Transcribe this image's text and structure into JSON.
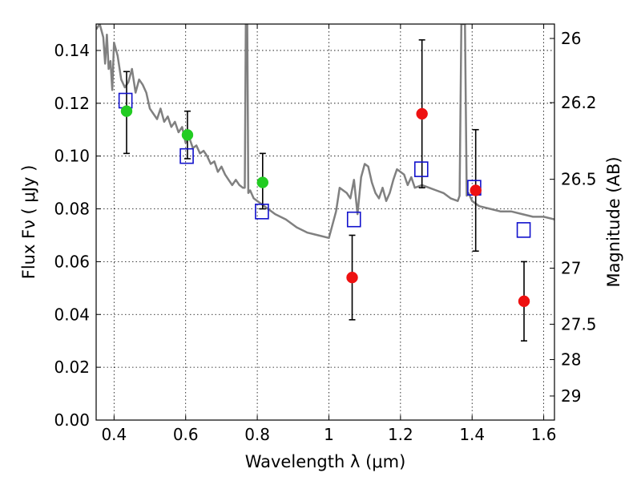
{
  "chart_data": {
    "type": "scatter",
    "title": "",
    "xlabel": "Wavelength  λ (μm)",
    "ylabel": "Flux  Fν  ( μJy )",
    "ylabel_right": "Magnitude (AB)",
    "xlim": [
      0.35,
      1.63
    ],
    "ylim": [
      0,
      0.15
    ],
    "grid": true,
    "x_ticks": [
      0.4,
      0.6,
      0.8,
      1.0,
      1.2,
      1.4,
      1.6
    ],
    "x_tick_labels": [
      "0.4",
      "0.6",
      "0.8",
      "1",
      "1.2",
      "1.4",
      "1.6"
    ],
    "y_ticks": [
      0.0,
      0.02,
      0.04,
      0.06,
      0.08,
      0.1,
      0.12,
      0.14
    ],
    "y_tick_labels": [
      "0.00",
      "0.02",
      "0.04",
      "0.06",
      "0.08",
      "0.10",
      "0.12",
      "0.14"
    ],
    "right_ticks": [
      {
        "label": "26",
        "mag": 26.0
      },
      {
        "label": "26.2",
        "mag": 26.2
      },
      {
        "label": "26.5",
        "mag": 26.5
      },
      {
        "label": "27",
        "mag": 27.0
      },
      {
        "label": "27.5",
        "mag": 27.5
      },
      {
        "label": "28",
        "mag": 28.0
      },
      {
        "label": "29",
        "mag": 29.0
      }
    ],
    "colors": {
      "model": "#808080",
      "green_points": "#22cc22",
      "red_points": "#ee1111",
      "model_squares": "#1111cc",
      "error_bars": "#000000"
    },
    "series": [
      {
        "kind": "line",
        "color": "#808080",
        "x": [
          0.35,
          0.36,
          0.37,
          0.375,
          0.38,
          0.385,
          0.39,
          0.395,
          0.4,
          0.41,
          0.42,
          0.43,
          0.44,
          0.45,
          0.46,
          0.47,
          0.48,
          0.49,
          0.5,
          0.51,
          0.52,
          0.53,
          0.54,
          0.55,
          0.56,
          0.57,
          0.58,
          0.59,
          0.6,
          0.61,
          0.62,
          0.63,
          0.64,
          0.65,
          0.66,
          0.67,
          0.68,
          0.69,
          0.7,
          0.71,
          0.72,
          0.73,
          0.74,
          0.75,
          0.76,
          0.765,
          0.768,
          0.772,
          0.775,
          0.78,
          0.79,
          0.8,
          0.82,
          0.85,
          0.88,
          0.91,
          0.94,
          0.97,
          1.0,
          1.02,
          1.03,
          1.04,
          1.05,
          1.06,
          1.07,
          1.08,
          1.09,
          1.1,
          1.11,
          1.12,
          1.13,
          1.14,
          1.15,
          1.16,
          1.17,
          1.18,
          1.19,
          1.2,
          1.21,
          1.22,
          1.23,
          1.24,
          1.26,
          1.28,
          1.3,
          1.32,
          1.34,
          1.36,
          1.365,
          1.37,
          1.38,
          1.385,
          1.39,
          1.4,
          1.42,
          1.45,
          1.48,
          1.51,
          1.54,
          1.57,
          1.6,
          1.63
        ],
        "y": [
          0.148,
          0.15,
          0.145,
          0.135,
          0.146,
          0.133,
          0.136,
          0.125,
          0.143,
          0.138,
          0.129,
          0.126,
          0.128,
          0.133,
          0.124,
          0.129,
          0.127,
          0.124,
          0.118,
          0.116,
          0.114,
          0.118,
          0.113,
          0.115,
          0.111,
          0.113,
          0.109,
          0.111,
          0.105,
          0.107,
          0.103,
          0.104,
          0.101,
          0.102,
          0.1,
          0.097,
          0.098,
          0.094,
          0.096,
          0.093,
          0.091,
          0.089,
          0.091,
          0.089,
          0.088,
          0.088,
          0.15,
          0.15,
          0.086,
          0.087,
          0.084,
          0.083,
          0.081,
          0.078,
          0.076,
          0.073,
          0.071,
          0.07,
          0.069,
          0.079,
          0.088,
          0.087,
          0.086,
          0.084,
          0.091,
          0.078,
          0.092,
          0.097,
          0.096,
          0.09,
          0.086,
          0.084,
          0.088,
          0.083,
          0.086,
          0.091,
          0.095,
          0.094,
          0.093,
          0.089,
          0.092,
          0.088,
          0.089,
          0.088,
          0.087,
          0.086,
          0.084,
          0.083,
          0.085,
          0.15,
          0.15,
          0.085,
          0.086,
          0.083,
          0.081,
          0.08,
          0.079,
          0.079,
          0.078,
          0.077,
          0.077,
          0.076
        ]
      },
      {
        "kind": "points",
        "marker": "circle",
        "color": "#22cc22",
        "x": [
          0.435,
          0.605,
          0.815
        ],
        "y": [
          0.117,
          0.108,
          0.09
        ],
        "yerr_low": [
          0.101,
          0.099,
          0.08
        ],
        "yerr_high": [
          0.132,
          0.117,
          0.101
        ]
      },
      {
        "kind": "points",
        "marker": "circle",
        "color": "#ee1111",
        "x": [
          1.065,
          1.26,
          1.41,
          1.545
        ],
        "y": [
          0.054,
          0.116,
          0.087,
          0.045
        ],
        "yerr_low": [
          0.038,
          0.088,
          0.064,
          0.03
        ],
        "yerr_high": [
          0.07,
          0.144,
          0.11,
          0.06
        ]
      },
      {
        "kind": "points",
        "marker": "open-square",
        "color": "#1111cc",
        "x": [
          0.432,
          0.603,
          0.813,
          1.07,
          1.258,
          1.406,
          1.544
        ],
        "y": [
          0.121,
          0.1,
          0.079,
          0.076,
          0.095,
          0.088,
          0.072
        ]
      }
    ]
  }
}
